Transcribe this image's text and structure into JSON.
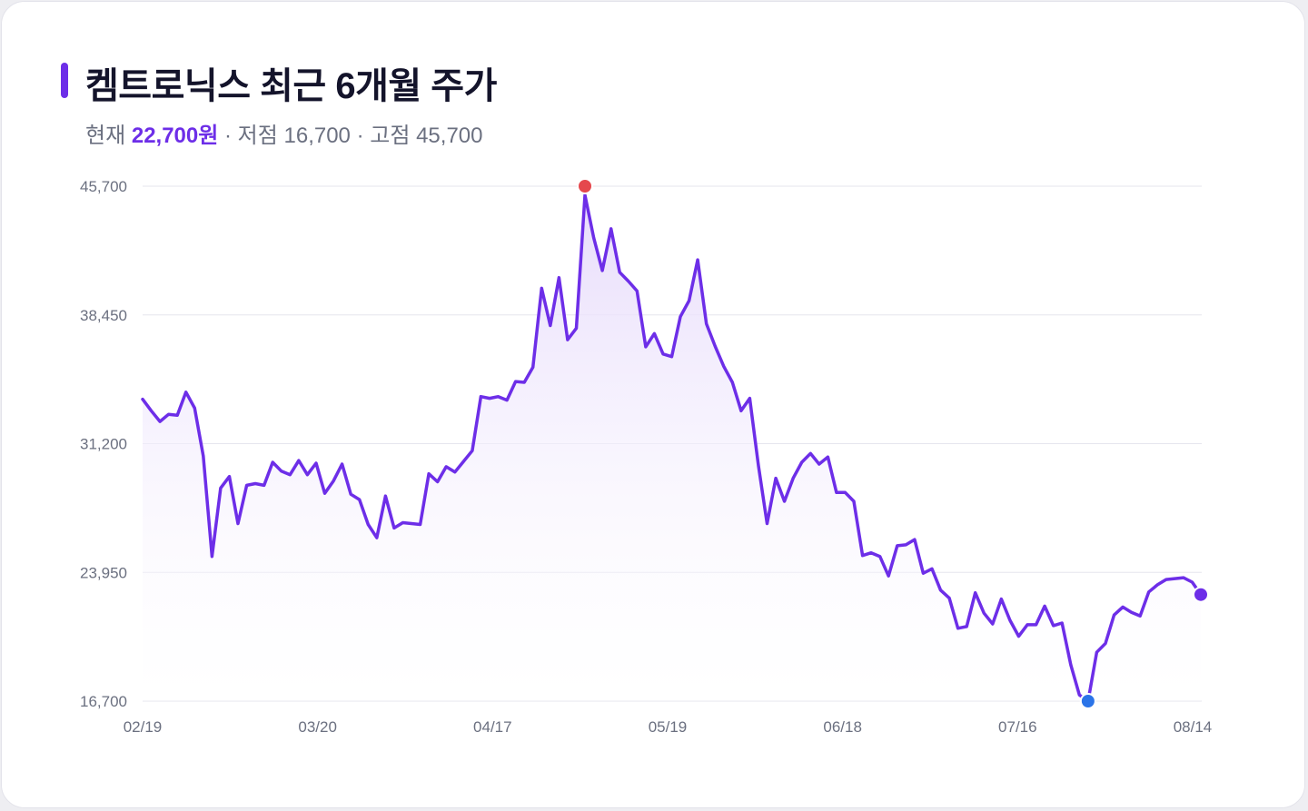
{
  "header": {
    "title": "켐트로닉스 최근 6개월 주가",
    "current_label": "현재",
    "current_price": "22,700원",
    "low_text": "· 저점 16,700",
    "high_text": "· 고점 45,700"
  },
  "colors": {
    "accent": "#6d2ee8",
    "high_marker": "#e5484d",
    "low_marker": "#2b74e8",
    "current_marker": "#6d2ee8",
    "grid": "#e6e6ee",
    "fill_top": "#e6dafb"
  },
  "chart_data": {
    "type": "area",
    "title": "켐트로닉스 최근 6개월 주가",
    "xlabel": "",
    "ylabel": "",
    "ylim": [
      16700,
      45700
    ],
    "yticks": [
      "45,700",
      "38,450",
      "31,200",
      "23,950",
      "16,700"
    ],
    "ytick_values": [
      45700,
      38450,
      31200,
      23950,
      16700
    ],
    "xticks": [
      "02/19",
      "03/20",
      "04/17",
      "05/19",
      "06/18",
      "07/16",
      "08/14"
    ],
    "grid": true,
    "legend": "none",
    "highlights": {
      "high": 45700,
      "low": 16700,
      "current": 22700
    },
    "values": [
      33700,
      33050,
      32450,
      32850,
      32800,
      34100,
      33200,
      30500,
      24850,
      28700,
      29350,
      26700,
      28850,
      28950,
      28850,
      30150,
      29650,
      29450,
      30250,
      29450,
      30100,
      28400,
      29100,
      30050,
      28350,
      28050,
      26650,
      25900,
      28250,
      26450,
      26750,
      26700,
      26650,
      29500,
      29050,
      29900,
      29600,
      30200,
      30800,
      33850,
      33750,
      33850,
      33650,
      34700,
      34650,
      35500,
      39950,
      37850,
      40550,
      37050,
      37700,
      45200,
      42800,
      40950,
      43300,
      40850,
      40350,
      39800,
      36650,
      37400,
      36250,
      36100,
      38350,
      39250,
      41550,
      37950,
      36700,
      35550,
      34650,
      33050,
      33750,
      29950,
      26700,
      29250,
      27950,
      29250,
      30150,
      30650,
      30050,
      30450,
      28450,
      28450,
      27950,
      24900,
      25050,
      24850,
      23750,
      25450,
      25500,
      25800,
      23900,
      24150,
      22950,
      22500,
      20800,
      20900,
      22800,
      21650,
      21050,
      22450,
      21250,
      20350,
      21000,
      21000,
      22050,
      20950,
      21100,
      18750,
      17050,
      16700,
      19450,
      19950,
      21550,
      22000,
      21700,
      21500,
      22850,
      23250,
      23550,
      23600,
      23650,
      23400,
      22700
    ]
  }
}
